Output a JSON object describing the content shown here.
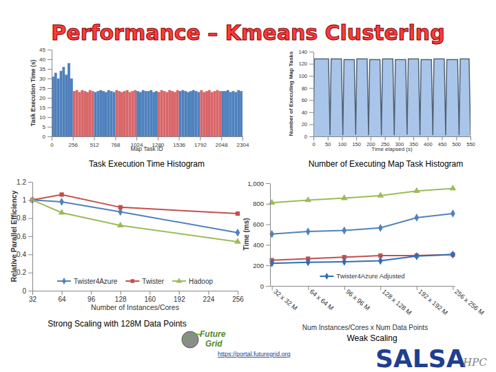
{
  "title": "Performance – Kmeans Clustering",
  "chart_data": [
    {
      "type": "histogram",
      "title": "Task Execution Time Histogram",
      "x_label": "Map Task ID",
      "y_label": "Task Execution Time (s)",
      "bins": [
        0,
        32,
        64,
        96,
        128,
        160,
        192,
        224,
        256,
        288,
        320,
        352,
        384,
        416,
        448,
        480,
        512,
        544,
        576,
        608,
        640,
        672,
        704,
        736,
        768,
        800,
        832,
        864,
        896,
        928,
        960,
        992,
        1024,
        1056,
        1088,
        1120,
        1152,
        1184,
        1216,
        1248,
        1280,
        1312,
        1344,
        1376,
        1408,
        1440,
        1472,
        1504,
        1536,
        1568,
        1600,
        1632,
        1664,
        1696,
        1728,
        1760,
        1792,
        1824,
        1856,
        1888,
        1920,
        1952,
        1984,
        2016,
        2048,
        2080,
        2112,
        2144,
        2176,
        2208,
        2240,
        2272,
        2304
      ],
      "values": [
        31,
        33,
        30,
        34,
        36,
        32,
        38,
        30,
        23.5,
        24,
        23,
        24,
        23.5,
        23,
        24,
        23.5,
        23,
        23.5,
        24,
        23.5,
        23,
        24,
        23.5,
        23,
        24,
        23.5,
        23,
        23.5,
        24,
        23,
        23.5,
        24,
        23.5,
        23,
        24,
        23.5,
        23.5,
        24,
        23,
        23.5,
        23,
        24,
        23.5,
        23,
        24,
        23.5,
        23,
        24,
        23.5,
        24,
        23.5,
        23,
        23.5,
        24,
        23.5,
        23,
        24,
        23,
        23.5,
        24,
        23,
        23.5,
        24,
        23.5,
        23.5,
        23.5,
        24,
        23,
        23.5,
        23,
        24,
        23.5
      ],
      "colors": [
        "#4f81bd",
        "#4f81bd",
        "#4f81bd",
        "#4f81bd",
        "#4f81bd",
        "#4f81bd",
        "#4f81bd",
        "#4f81bd",
        "#d9676a",
        "#d9676a",
        "#d9676a",
        "#d9676a",
        "#d9676a",
        "#d9676a",
        "#d9676a",
        "#d9676a",
        "#4f81bd",
        "#4f81bd",
        "#4f81bd",
        "#4f81bd",
        "#4f81bd",
        "#4f81bd",
        "#4f81bd",
        "#4f81bd",
        "#d9676a",
        "#d9676a",
        "#d9676a",
        "#d9676a",
        "#d9676a",
        "#d9676a",
        "#d9676a",
        "#d9676a",
        "#4f81bd",
        "#4f81bd",
        "#4f81bd",
        "#4f81bd",
        "#4f81bd",
        "#4f81bd",
        "#4f81bd",
        "#4f81bd",
        "#d9676a",
        "#d9676a",
        "#d9676a",
        "#d9676a",
        "#d9676a",
        "#d9676a",
        "#d9676a",
        "#d9676a",
        "#4f81bd",
        "#4f81bd",
        "#4f81bd",
        "#4f81bd",
        "#4f81bd",
        "#4f81bd",
        "#4f81bd",
        "#4f81bd",
        "#d9676a",
        "#d9676a",
        "#d9676a",
        "#d9676a",
        "#d9676a",
        "#d9676a",
        "#d9676a",
        "#d9676a",
        "#4f81bd",
        "#4f81bd",
        "#4f81bd",
        "#4f81bd",
        "#4f81bd",
        "#4f81bd",
        "#4f81bd",
        "#4f81bd"
      ],
      "xlim": [
        0,
        2304
      ],
      "xticks": [
        0,
        256,
        512,
        768,
        1024,
        1280,
        1536,
        1792,
        2048,
        2304
      ],
      "ylim": [
        0,
        45
      ],
      "yticks": [
        0,
        5,
        10,
        15,
        20,
        25,
        30,
        35,
        40,
        45
      ],
      "grid": false
    },
    {
      "type": "area",
      "title": "Number of Executing Map Task Histogram",
      "x_label": "Time elapsed (s)",
      "y_label": "Number of Executing Map Tasks",
      "x": [
        0,
        3,
        53,
        58,
        62,
        98,
        103,
        107,
        143,
        148,
        152,
        188,
        193,
        197,
        233,
        238,
        242,
        278,
        283,
        287,
        323,
        328,
        332,
        368,
        373,
        377,
        413,
        418,
        422,
        458,
        463,
        467,
        505,
        510,
        514,
        545,
        550
      ],
      "values": [
        0,
        128,
        128,
        2,
        128,
        128,
        2,
        127,
        127,
        3,
        128,
        128,
        2,
        127,
        127,
        2,
        128,
        128,
        2,
        127,
        127,
        3,
        128,
        128,
        2,
        127,
        127,
        2,
        128,
        128,
        2,
        127,
        127,
        2,
        128,
        128,
        2
      ],
      "color": "#a9c6ea",
      "xlim": [
        0,
        550
      ],
      "xticks": [
        0,
        50,
        100,
        150,
        200,
        250,
        300,
        350,
        400,
        450,
        500,
        550
      ],
      "ylim": [
        0,
        140
      ],
      "yticks": [
        0,
        20,
        40,
        60,
        80,
        100,
        120,
        140
      ],
      "grid": false
    },
    {
      "type": "line",
      "title": "Strong Scaling with 128M Data Points",
      "x_label": "Number of Instances/Cores",
      "y_label": "Relative Parallel Efficiency",
      "x": [
        32,
        64,
        128,
        256
      ],
      "series": [
        {
          "name": "Twister4Azure",
          "color": "#4f81bd",
          "marker": "diamond",
          "values": [
            1,
            0.98,
            0.87,
            0.64
          ]
        },
        {
          "name": "Twister",
          "color": "#c0504d",
          "marker": "square",
          "values": [
            1,
            1.06,
            0.92,
            0.85
          ]
        },
        {
          "name": "Hadoop",
          "color": "#9bbb59",
          "marker": "triangle",
          "values": [
            1,
            0.86,
            0.72,
            0.54
          ]
        }
      ],
      "xlim": [
        32,
        256
      ],
      "xticks": [
        32,
        64,
        96,
        128,
        160,
        192,
        224,
        256
      ],
      "ylim": [
        0,
        1.2
      ],
      "yticks": [
        0,
        0.2,
        0.4,
        0.6,
        0.8,
        1,
        1.2
      ],
      "legend": "bottom",
      "grid": false
    },
    {
      "type": "line",
      "title": "Weak Scaling",
      "x_label": "Num Instances/Cores x Num Data Points",
      "y_label": "Time (ms)",
      "categories": [
        "32 x 32 M",
        "64 x 64 M",
        "96 x 96 M",
        "128 x 128 M",
        "192 x 192 M",
        "256 x 256 M"
      ],
      "series": [
        {
          "color": "#9bbb59",
          "marker": "triangle",
          "values": [
            810,
            835,
            855,
            880,
            925,
            950
          ]
        },
        {
          "color": "#4f81bd",
          "marker": "diamond",
          "values": [
            505,
            530,
            540,
            565,
            665,
            705
          ]
        },
        {
          "color": "#c0504d",
          "marker": "square",
          "values": [
            250,
            265,
            280,
            295,
            295,
            305
          ]
        },
        {
          "name": "Twister4Azure Adjusted",
          "color": "#2f6eba",
          "marker": "diamond",
          "values": [
            220,
            230,
            235,
            245,
            290,
            305
          ]
        }
      ],
      "ylim": [
        0,
        1000
      ],
      "yticks": [
        0,
        200,
        400,
        600,
        800,
        {
          "value": 1000,
          "label": "1,000"
        }
      ],
      "legend": "bottom",
      "grid": false
    }
  ],
  "footer": {
    "logo_top": "Future",
    "logo_bottom": "Grid",
    "url": "https://portal.futuregrid.org",
    "brand": "SALSA",
    "brand_sub": "HPC"
  }
}
